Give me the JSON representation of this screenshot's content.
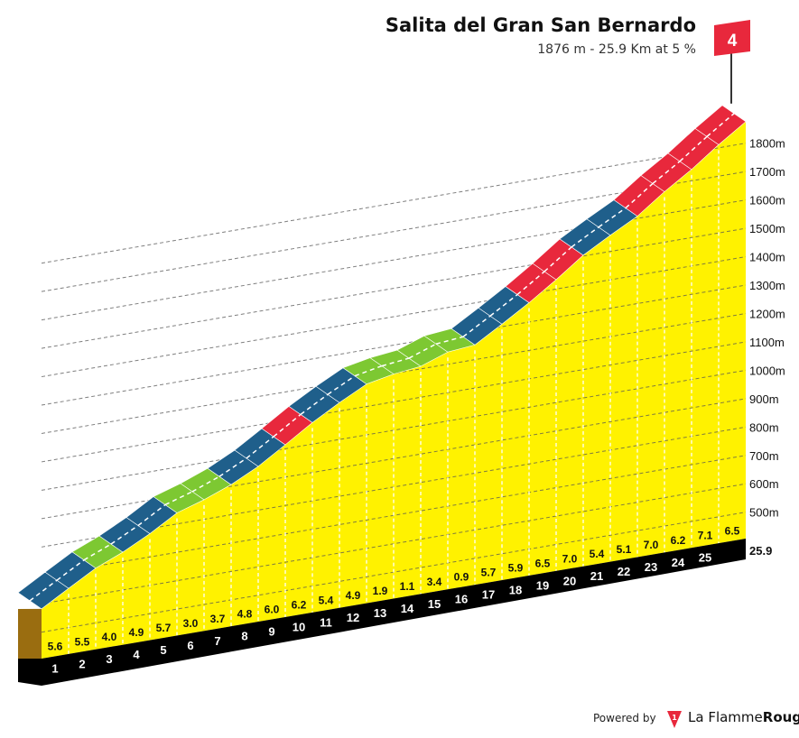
{
  "header": {
    "title": "Salita del Gran San Bernardo",
    "subtitle": "1876 m - 25.9 Km at 5 %",
    "category_badge": "4"
  },
  "footer": {
    "powered_label": "Powered by",
    "brand_name_part1": "La Flamme",
    "brand_name_part2": "Rouge",
    "logo_icon": "flamme-rouge-icon"
  },
  "colors": {
    "profile_fill": "#fff200",
    "base_side": "#9a6d10",
    "strip": "#000000",
    "grade_low": "#7dc832",
    "grade_mid": "#1f5f8b",
    "grade_high": "#e8283c",
    "badge": "#e8283c"
  },
  "chart_data": {
    "type": "area",
    "title": "Salita del Gran San Bernardo",
    "subtitle": "1876 m - 25.9 Km at 5 %",
    "x_unit": "km",
    "y_unit": "m",
    "total_distance": "25.9",
    "y_tick_labels": [
      "500m",
      "600m",
      "700m",
      "800m",
      "900m",
      "1000m",
      "1100m",
      "1200m",
      "1300m",
      "1400m",
      "1500m",
      "1600m",
      "1700m",
      "1800m"
    ],
    "y_ticks": [
      500,
      600,
      700,
      800,
      900,
      1000,
      1100,
      1200,
      1300,
      1400,
      1500,
      1600,
      1700,
      1800
    ],
    "km_labels": [
      "1",
      "2",
      "3",
      "4",
      "5",
      "6",
      "7",
      "8",
      "9",
      "10",
      "11",
      "12",
      "13",
      "14",
      "15",
      "16",
      "17",
      "18",
      "19",
      "20",
      "21",
      "22",
      "23",
      "24",
      "25"
    ],
    "grade_labels": [
      "5.6",
      "5.5",
      "4.0",
      "4.9",
      "5.7",
      "3.0",
      "3.7",
      "4.8",
      "6.0",
      "6.2",
      "5.4",
      "4.9",
      "1.9",
      "1.1",
      "3.4",
      "0.9",
      "5.7",
      "5.9",
      "6.5",
      "7.0",
      "5.4",
      "5.1",
      "7.0",
      "6.2",
      "7.1",
      "6.5"
    ],
    "grades": [
      5.6,
      5.5,
      4.0,
      4.9,
      5.7,
      3.0,
      3.7,
      4.8,
      6.0,
      6.2,
      5.4,
      4.9,
      1.9,
      1.1,
      3.4,
      0.9,
      5.7,
      5.9,
      6.5,
      7.0,
      5.4,
      5.1,
      7.0,
      6.2,
      7.1,
      6.5
    ],
    "grade_categories": [
      "mid",
      "mid",
      "low",
      "mid",
      "mid",
      "low",
      "low",
      "mid",
      "mid",
      "high",
      "mid",
      "mid",
      "low",
      "low",
      "low",
      "low",
      "mid",
      "mid",
      "high",
      "high",
      "mid",
      "mid",
      "high",
      "high",
      "high",
      "high"
    ],
    "summit_elevation": 1876
  }
}
